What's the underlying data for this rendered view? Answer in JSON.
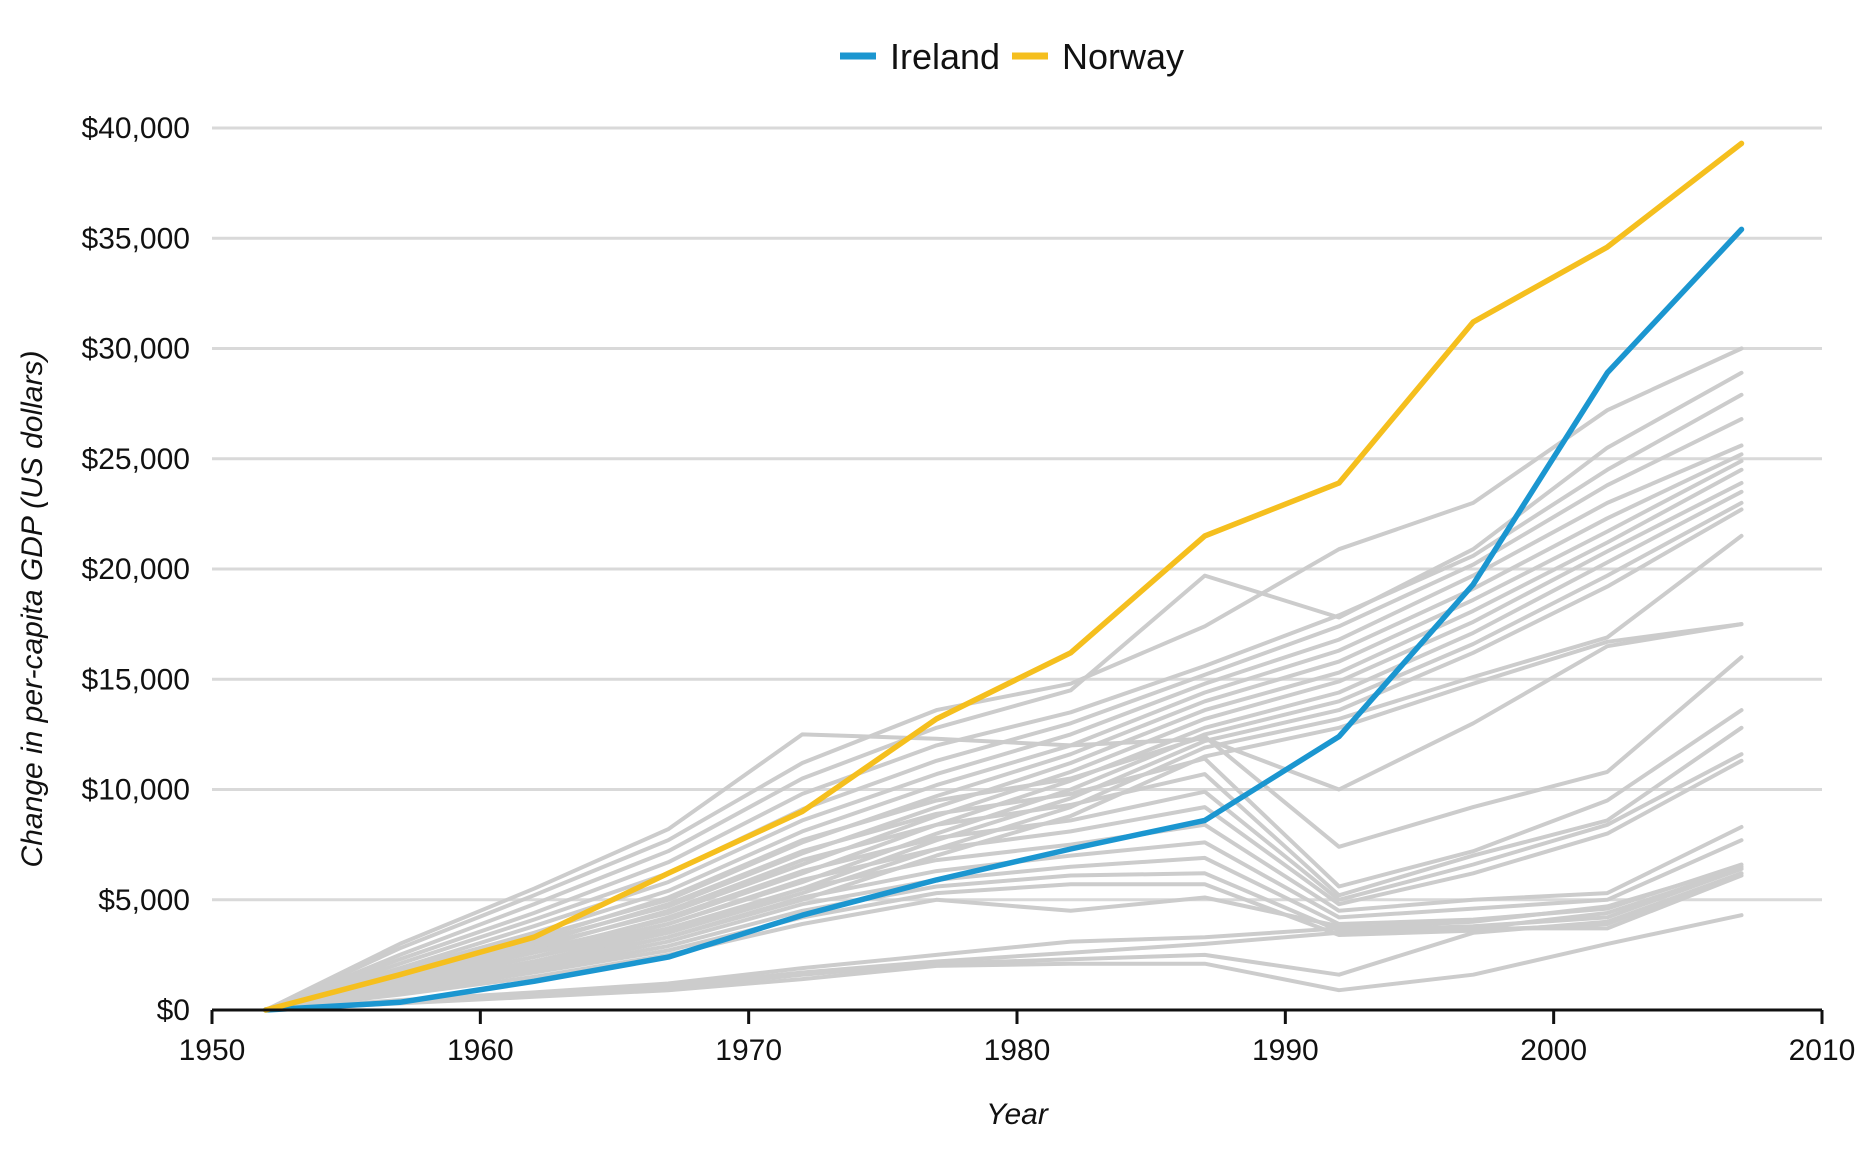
{
  "chart_data": {
    "type": "line",
    "xlabel": "Year",
    "ylabel": "Change in per-capita GDP (US dollars)",
    "xlim": [
      1950,
      2010
    ],
    "ylim": [
      0,
      40000
    ],
    "x_ticks": [
      1950,
      1960,
      1970,
      1980,
      1990,
      2000,
      2010
    ],
    "x_tick_labels": [
      "1950",
      "1960",
      "1970",
      "1980",
      "1990",
      "2000",
      "2010"
    ],
    "y_ticks": [
      0,
      5000,
      10000,
      15000,
      20000,
      25000,
      30000,
      35000,
      40000
    ],
    "y_tick_labels": [
      "$0",
      "$5,000",
      "$10,000",
      "$15,000",
      "$20,000",
      "$25,000",
      "$30,000",
      "$35,000",
      "$40,000"
    ],
    "grid": "horizontal",
    "legend": {
      "placement": "top-center",
      "entries": [
        "Ireland",
        "Norway"
      ]
    },
    "colors": {
      "Ireland": "#1b96d0",
      "Norway": "#f5bf1e",
      "other": "#cccccc",
      "grid": "#d9d9d9",
      "axis": "#111111"
    },
    "x": [
      1952,
      1957,
      1962,
      1967,
      1972,
      1977,
      1982,
      1987,
      1992,
      1997,
      2002,
      2007
    ],
    "series": [
      {
        "name": "Ireland",
        "highlight": true,
        "values": [
          0,
          350,
          1300,
          2400,
          4300,
          5900,
          7300,
          8600,
          12400,
          19300,
          28900,
          35400
        ]
      },
      {
        "name": "Norway",
        "highlight": true,
        "values": [
          0,
          1600,
          3300,
          6200,
          9000,
          13200,
          16200,
          21500,
          23900,
          31200,
          34600,
          39300
        ]
      },
      {
        "values": [
          0,
          3000,
          5500,
          8200,
          12500,
          12300,
          12000,
          12300,
          10000,
          13000,
          16500,
          17500
        ]
      },
      {
        "values": [
          0,
          2800,
          5200,
          7700,
          11200,
          13600,
          14800,
          17400,
          20900,
          23000,
          27200,
          30000
        ]
      },
      {
        "values": [
          0,
          2500,
          4800,
          7200,
          10500,
          12800,
          14500,
          19700,
          17800,
          20900,
          25500,
          28900
        ]
      },
      {
        "values": [
          0,
          2300,
          4400,
          6700,
          9800,
          12000,
          13500,
          15600,
          17900,
          20600,
          24500,
          27900
        ]
      },
      {
        "values": [
          0,
          2100,
          4100,
          6200,
          9100,
          11300,
          13000,
          15200,
          17400,
          20200,
          23800,
          26800
        ]
      },
      {
        "values": [
          0,
          1900,
          3800,
          5800,
          8600,
          10700,
          12500,
          14800,
          16800,
          19700,
          23000,
          25600
        ]
      },
      {
        "values": [
          0,
          1800,
          3500,
          5400,
          8100,
          10200,
          12000,
          14400,
          16300,
          19100,
          22300,
          25200
        ]
      },
      {
        "values": [
          0,
          1700,
          3300,
          5000,
          7600,
          9700,
          11600,
          14000,
          15800,
          18600,
          21700,
          24900
        ]
      },
      {
        "values": [
          0,
          1600,
          3100,
          4700,
          7100,
          9200,
          11200,
          13600,
          15300,
          18100,
          21200,
          24500
        ]
      },
      {
        "values": [
          0,
          1500,
          2900,
          4400,
          6600,
          8800,
          10800,
          13200,
          14900,
          17600,
          20800,
          23900
        ]
      },
      {
        "values": [
          0,
          1400,
          2700,
          4100,
          6200,
          8400,
          10400,
          12800,
          14400,
          17100,
          20300,
          23500
        ]
      },
      {
        "values": [
          0,
          1300,
          2600,
          3900,
          5800,
          8000,
          10000,
          12500,
          14000,
          16600,
          19700,
          23000
        ]
      },
      {
        "values": [
          0,
          1200,
          2400,
          3700,
          5500,
          7700,
          9600,
          12200,
          13600,
          16200,
          19200,
          22700
        ]
      },
      {
        "values": [
          0,
          1100,
          2200,
          3500,
          5300,
          7300,
          9200,
          11900,
          13200,
          15100,
          16900,
          21500
        ]
      },
      {
        "values": [
          0,
          1000,
          2100,
          3300,
          5000,
          7000,
          8800,
          11500,
          12800,
          14800,
          16700,
          17500
        ]
      },
      {
        "values": [
          0,
          1600,
          3200,
          5100,
          7700,
          9500,
          10500,
          12400,
          7400,
          9200,
          10800,
          16000
        ]
      },
      {
        "values": [
          0,
          1500,
          3000,
          4800,
          7200,
          8900,
          9800,
          11400,
          5600,
          7200,
          9500,
          13600
        ]
      },
      {
        "values": [
          0,
          1400,
          2800,
          4500,
          6800,
          8400,
          9300,
          10700,
          5200,
          7000,
          8600,
          12800
        ]
      },
      {
        "values": [
          0,
          1300,
          2600,
          4200,
          6300,
          7800,
          8600,
          9900,
          5000,
          6600,
          8400,
          11600
        ]
      },
      {
        "values": [
          0,
          1200,
          2400,
          3900,
          5900,
          7300,
          8100,
          9200,
          4800,
          6200,
          8000,
          11300
        ]
      },
      {
        "values": [
          0,
          1100,
          2200,
          3600,
          5500,
          6800,
          7500,
          8400,
          4500,
          5000,
          5300,
          8300
        ]
      },
      {
        "values": [
          0,
          1000,
          2000,
          3300,
          5100,
          6300,
          7000,
          7600,
          4200,
          4600,
          5000,
          7700
        ]
      },
      {
        "values": [
          0,
          900,
          1900,
          3100,
          4800,
          5900,
          6500,
          6900,
          3900,
          4100,
          4600,
          6600
        ]
      },
      {
        "values": [
          0,
          850,
          1800,
          2900,
          4500,
          5600,
          6100,
          6200,
          3600,
          3800,
          4200,
          6400
        ]
      },
      {
        "values": [
          0,
          800,
          1700,
          2700,
          4200,
          5300,
          5700,
          5700,
          3400,
          3600,
          3900,
          6200
        ]
      },
      {
        "values": [
          0,
          700,
          1500,
          2500,
          3900,
          5000,
          4500,
          5100,
          3800,
          3700,
          3700,
          6100
        ]
      },
      {
        "values": [
          0,
          450,
          800,
          1200,
          1900,
          2500,
          3100,
          3300,
          3700,
          4000,
          4700,
          6500
        ]
      },
      {
        "values": [
          0,
          400,
          700,
          1100,
          1700,
          2200,
          2600,
          3000,
          3500,
          3700,
          4400,
          6400
        ]
      },
      {
        "values": [
          0,
          350,
          650,
          1000,
          1600,
          2100,
          2300,
          2500,
          1600,
          3500,
          4000,
          6200
        ]
      },
      {
        "values": [
          0,
          300,
          600,
          900,
          1400,
          2000,
          2100,
          2100,
          900,
          1600,
          3000,
          4300
        ]
      }
    ]
  }
}
